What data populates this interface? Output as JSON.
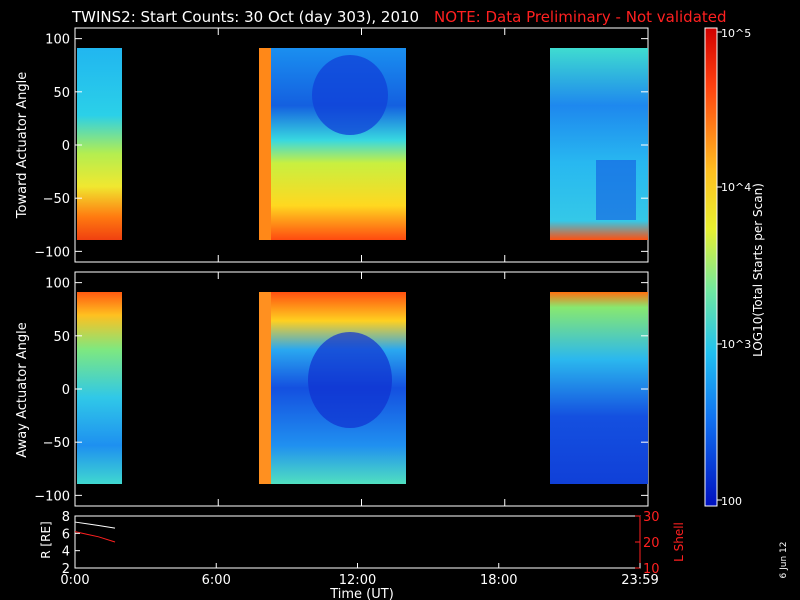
{
  "header": {
    "title": "TWINS2: Start Counts: 30 Oct (day 303), 2010",
    "note": "NOTE: Data Preliminary - Not validated"
  },
  "panels": {
    "top_ylabel": "Toward Actuator Angle",
    "bottom_ylabel": "Away Actuator Angle",
    "orbit_left_label": "R [RE]",
    "orbit_right_label": "L Shell"
  },
  "colorbar": {
    "label": "LOG10(Total Starts per Scan)",
    "ticks": [
      "10^5",
      "10^4",
      "10^3",
      "100"
    ]
  },
  "xaxis": {
    "label": "Time (UT)",
    "ticks": [
      "0:00",
      "6:00",
      "12:00",
      "18:00",
      "23:59"
    ]
  },
  "date_stamp": "6 Jun 12",
  "chart_data": [
    {
      "type": "heatmap",
      "title": "TWINS2: Start Counts: 30 Oct (day 303), 2010",
      "xlabel": "Time (UT)",
      "ylabel": "Toward Actuator Angle",
      "xlim": [
        0,
        24
      ],
      "ylim": [
        -110,
        110
      ],
      "yticks": [
        100,
        50,
        0,
        -50,
        -100
      ],
      "color_scale": "log",
      "zlim": [
        100,
        100000
      ],
      "data_intervals_hours": [
        [
          0.0,
          1.7
        ],
        [
          7.7,
          13.8
        ],
        [
          19.7,
          24.0
        ]
      ]
    },
    {
      "type": "heatmap",
      "xlabel": "Time (UT)",
      "ylabel": "Away Actuator Angle",
      "xlim": [
        0,
        24
      ],
      "ylim": [
        -110,
        110
      ],
      "yticks": [
        100,
        50,
        0,
        -50,
        -100
      ],
      "color_scale": "log",
      "zlim": [
        100,
        100000
      ],
      "data_intervals_hours": [
        [
          0.0,
          1.7
        ],
        [
          7.7,
          13.8
        ],
        [
          19.7,
          24.0
        ]
      ]
    },
    {
      "type": "line",
      "xlabel": "Time (UT)",
      "ylabel": "R [RE]",
      "xlim": [
        0,
        24
      ],
      "ylim": [
        2,
        8
      ],
      "yticks": [
        2,
        4,
        6,
        8
      ],
      "y2label": "L Shell",
      "y2lim": [
        10,
        30
      ],
      "y2ticks": [
        10,
        20,
        30
      ],
      "series": [
        {
          "name": "R",
          "color": "#ffffff",
          "x": [
            0.0,
            0.5,
            1.0,
            1.7
          ],
          "y": [
            7.3,
            7.1,
            6.9,
            6.6
          ]
        },
        {
          "name": "L Shell",
          "color": "#ff2020",
          "axis": "right",
          "x": [
            0.0,
            0.5,
            1.0,
            1.7
          ],
          "y": [
            24,
            23,
            22,
            20
          ]
        }
      ]
    }
  ]
}
